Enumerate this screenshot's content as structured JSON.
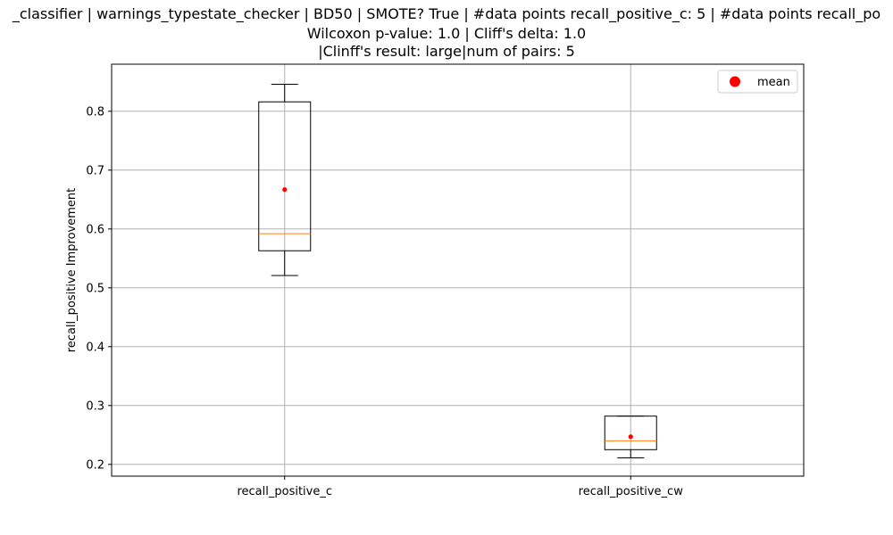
{
  "chart_data": {
    "type": "box",
    "title_lines": [
      "_classifier | warnings_typestate_checker | BD50 | SMOTE? True | #data points recall_positive_c: 5 | #data points recall_po",
      "Wilcoxon p-value: 1.0 | Cliff's delta: 1.0",
      "|Clinff's result: large|num of pairs: 5"
    ],
    "xlabel": "",
    "ylabel": "recall_positive Improvement",
    "categories": [
      "recall_positive_c",
      "recall_positive_cw"
    ],
    "ylim": [
      0.18,
      0.88
    ],
    "yticks": [
      "0.2",
      "0.3",
      "0.4",
      "0.5",
      "0.6",
      "0.7",
      "0.8"
    ],
    "grid": true,
    "boxes": [
      {
        "category": "recall_positive_c",
        "whisker_low": 0.521,
        "q1": 0.563,
        "median": 0.592,
        "q3": 0.816,
        "whisker_high": 0.846,
        "mean": 0.667
      },
      {
        "category": "recall_positive_cw",
        "whisker_low": 0.211,
        "q1": 0.225,
        "median": 0.24,
        "q3": 0.282,
        "whisker_high": 0.282,
        "mean": 0.247
      }
    ],
    "legend": {
      "placement": "top-right",
      "entries": [
        {
          "label": "mean",
          "marker": "circle",
          "color": "#ff0000"
        }
      ]
    },
    "colors": {
      "box": "#000000",
      "median": "#ff7f0e",
      "mean": "#ff0000",
      "grid": "#b0b0b0"
    }
  }
}
